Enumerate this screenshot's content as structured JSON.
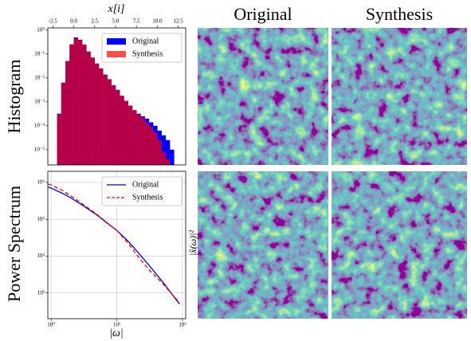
{
  "figure": {
    "column_titles": [
      "Original",
      "Synthesis"
    ],
    "row_labels": [
      "Histogram",
      "Power Spectrum"
    ]
  },
  "chart_data": [
    {
      "type": "histogram",
      "xlabel": "x[i]",
      "log_y": true,
      "legend": "upper right",
      "bins": [
        -2,
        -1.5,
        -1,
        -0.5,
        0,
        0.5,
        1,
        1.5,
        2,
        2.5,
        3,
        3.5,
        4,
        4.5,
        5,
        5.5,
        6,
        6.5,
        7,
        7.5,
        8,
        8.5,
        9,
        9.5,
        10,
        10.5,
        11,
        11.5,
        12
      ],
      "series": [
        {
          "name": "Original",
          "color": "#0000ff",
          "alpha": 1,
          "values": [
            0.00032,
            0.0063,
            0.05,
            0.25,
            0.5,
            0.4,
            0.25,
            0.126,
            0.071,
            0.04,
            0.025,
            0.014,
            0.0089,
            0.005,
            0.0032,
            0.0018,
            0.0011,
            0.0007,
            0.00045,
            0.00032,
            0.00025,
            0.0002,
            0.00014,
            0.0001,
            6.3e-05,
            4e-05,
            2.5e-05,
            1e-05
          ]
        },
        {
          "name": "Synthesis",
          "color": "#ff0000",
          "alpha": 0.7,
          "values": [
            0.0003,
            0.0065,
            0.052,
            0.26,
            0.48,
            0.39,
            0.25,
            0.13,
            0.072,
            0.041,
            0.025,
            0.014,
            0.0088,
            0.005,
            0.0031,
            0.0018,
            0.0011,
            0.0007,
            0.00045,
            0.0003,
            0.00022,
            0.00014,
            9e-05,
            5e-05,
            2.5e-05,
            8e-06,
            4e-06,
            0
          ]
        }
      ],
      "xlim": [
        -3.1,
        13.4
      ],
      "xticks": [
        -2.5,
        0.0,
        2.5,
        5.0,
        7.5,
        10.0,
        12.5
      ],
      "ylim": [
        2.3e-06,
        1.25
      ],
      "yticks": [
        {
          "value": 1,
          "label": "10⁰"
        },
        {
          "value": 0.1,
          "label": "10⁻¹"
        },
        {
          "value": 0.01,
          "label": "10⁻²"
        },
        {
          "value": 0.001,
          "label": "10⁻³"
        },
        {
          "value": 0.0001,
          "label": "10⁻⁴"
        },
        {
          "value": 1e-05,
          "label": "10⁻⁵"
        }
      ]
    },
    {
      "type": "line",
      "xlabel": "|ω|",
      "ylabel": "|x̂(ω)|²",
      "log_x": true,
      "log_y": true,
      "grid": true,
      "legend": "upper right",
      "x": [
        0.9,
        1,
        1.5,
        2,
        3,
        5,
        7,
        10,
        15,
        20,
        30,
        50,
        70,
        90
      ],
      "series": [
        {
          "name": "Original",
          "color": "#0000cc",
          "dash": false,
          "values": [
            750000,
            700000,
            500000,
            380000,
            240000,
            130000,
            80000,
            50000,
            25000,
            14000,
            6000,
            2000,
            900,
            500
          ]
        },
        {
          "name": "Synthesis",
          "color": "#ff0000",
          "dash": true,
          "values": [
            900000,
            850000,
            600000,
            430000,
            260000,
            135000,
            82000,
            50000,
            22000,
            11000,
            4500,
            1800,
            900,
            550
          ]
        }
      ],
      "xlim": [
        0.89,
        112
      ],
      "xticks": [
        {
          "value": 1,
          "label": "10⁰"
        },
        {
          "value": 10,
          "label": "10¹"
        },
        {
          "value": 100,
          "label": "10²"
        }
      ],
      "ylim": [
        200,
        2000000
      ],
      "yticks": [
        {
          "value": 1000,
          "label": "10³"
        },
        {
          "value": 10000,
          "label": "10⁴"
        },
        {
          "value": 100000,
          "label": "10⁵"
        },
        {
          "value": 1000000,
          "label": "10⁶"
        }
      ]
    }
  ]
}
